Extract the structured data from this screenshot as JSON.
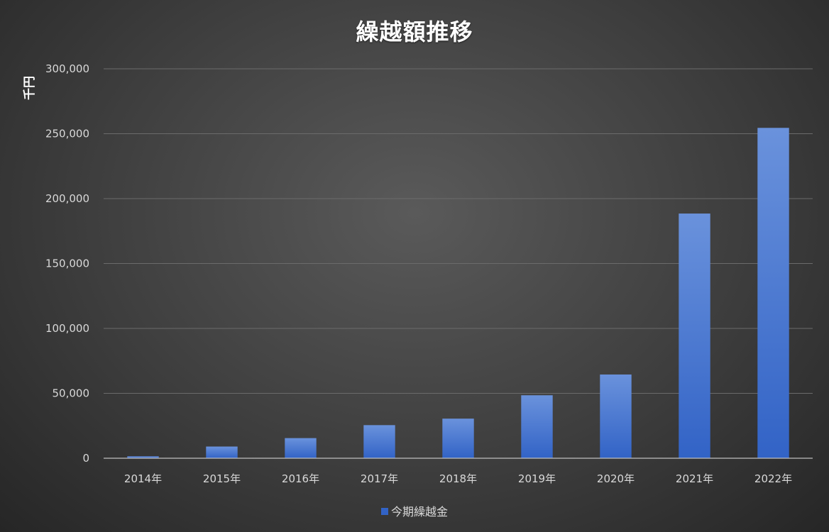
{
  "chart_data": {
    "type": "bar",
    "title": "繰越額推移",
    "ylabel": "千円",
    "xlabel": "",
    "categories": [
      "2014年",
      "2015年",
      "2016年",
      "2017年",
      "2018年",
      "2019年",
      "2020年",
      "2021年",
      "2022年"
    ],
    "series": [
      {
        "name": "今期繰越金",
        "values": [
          1500,
          9000,
          15500,
          25500,
          30500,
          48500,
          64500,
          188500,
          254500
        ]
      }
    ],
    "ylim": [
      0,
      300000
    ],
    "yticks": [
      0,
      50000,
      100000,
      150000,
      200000,
      250000,
      300000
    ],
    "ytick_labels": [
      "0",
      "50,000",
      "100,000",
      "150,000",
      "200,000",
      "250,000",
      "300,000"
    ],
    "grid": true,
    "legend_position": "bottom",
    "colors": {
      "bar_top": "#6a92dc",
      "bar_bottom": "#3263c6",
      "grid": "#6b6b6b",
      "axis": "#bfbfbf",
      "text": "#d9d9d9",
      "title": "#ffffff"
    }
  }
}
